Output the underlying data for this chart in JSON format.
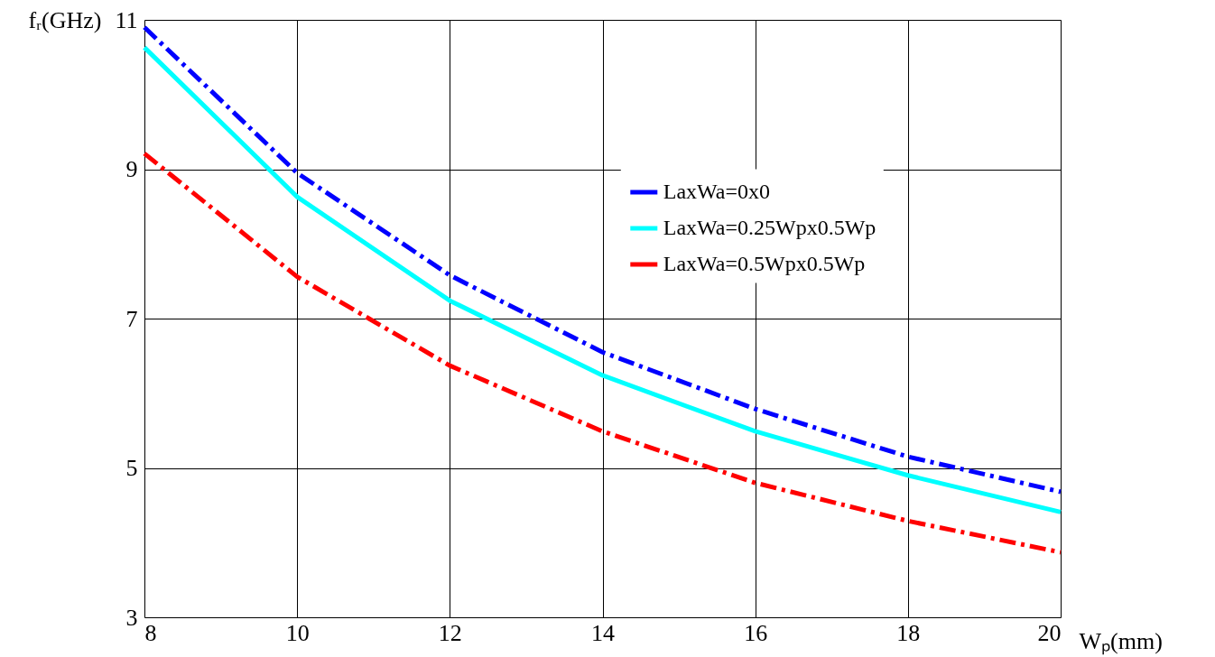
{
  "chart_data": {
    "type": "line",
    "xlabel": "Wₚ(mm)",
    "ylabel": "fᵣ(GHz)",
    "x": [
      8,
      10,
      12,
      14,
      16,
      18,
      20
    ],
    "series": [
      {
        "name": "LaxWa=0x0",
        "color": "#0000ff",
        "line_style": "dashed",
        "values": [
          10.9,
          8.95,
          7.58,
          6.55,
          5.79,
          5.15,
          4.68
        ]
      },
      {
        "name": "LaxWa=0.25Wpx0.5Wp",
        "color": "#00ffff",
        "line_style": "solid",
        "values": [
          10.63,
          8.63,
          7.24,
          6.24,
          5.49,
          4.9,
          4.41
        ]
      },
      {
        "name": "LaxWa=0.5Wpx0.5Wp",
        "color": "#ff0000",
        "line_style": "dashed",
        "values": [
          9.21,
          7.56,
          6.37,
          5.49,
          4.8,
          4.29,
          3.87
        ]
      }
    ],
    "xlim": [
      8,
      20
    ],
    "ylim": [
      3,
      11
    ],
    "xticks": [
      8,
      10,
      12,
      14,
      16,
      18,
      20
    ],
    "yticks": [
      3,
      5,
      7,
      9,
      11
    ],
    "grid": true,
    "legend": "top right",
    "marker": "none"
  }
}
